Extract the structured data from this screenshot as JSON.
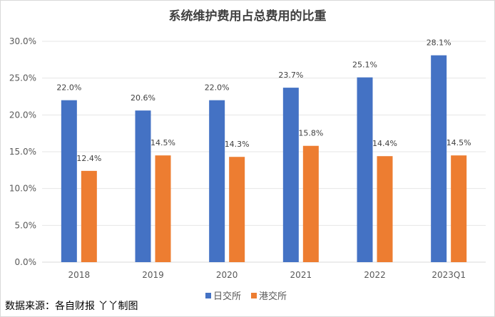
{
  "chart_data": {
    "type": "bar",
    "title": "系统维护费用占总费用的比重",
    "categories": [
      "2018",
      "2019",
      "2020",
      "2021",
      "2022",
      "2023Q1"
    ],
    "series": [
      {
        "name": "日交所",
        "color": "#4472C4",
        "values": [
          22.0,
          20.6,
          22.0,
          23.7,
          25.1,
          28.1
        ],
        "labels": [
          "22.0%",
          "20.6%",
          "22.0%",
          "23.7%",
          "25.1%",
          "28.1%"
        ]
      },
      {
        "name": "港交所",
        "color": "#ED7D31",
        "values": [
          12.4,
          14.5,
          14.3,
          15.8,
          14.4,
          14.5
        ],
        "labels": [
          "12.4%",
          "14.5%",
          "14.3%",
          "15.8%",
          "14.4%",
          "14.5%"
        ]
      }
    ],
    "ylim": [
      0,
      30
    ],
    "yticks": [
      "0.0%",
      "5.0%",
      "10.0%",
      "15.0%",
      "20.0%",
      "25.0%",
      "30.0%"
    ],
    "grid": true,
    "legend_position": "bottom"
  },
  "source": "数据来源：各自财报 丫丫制图"
}
